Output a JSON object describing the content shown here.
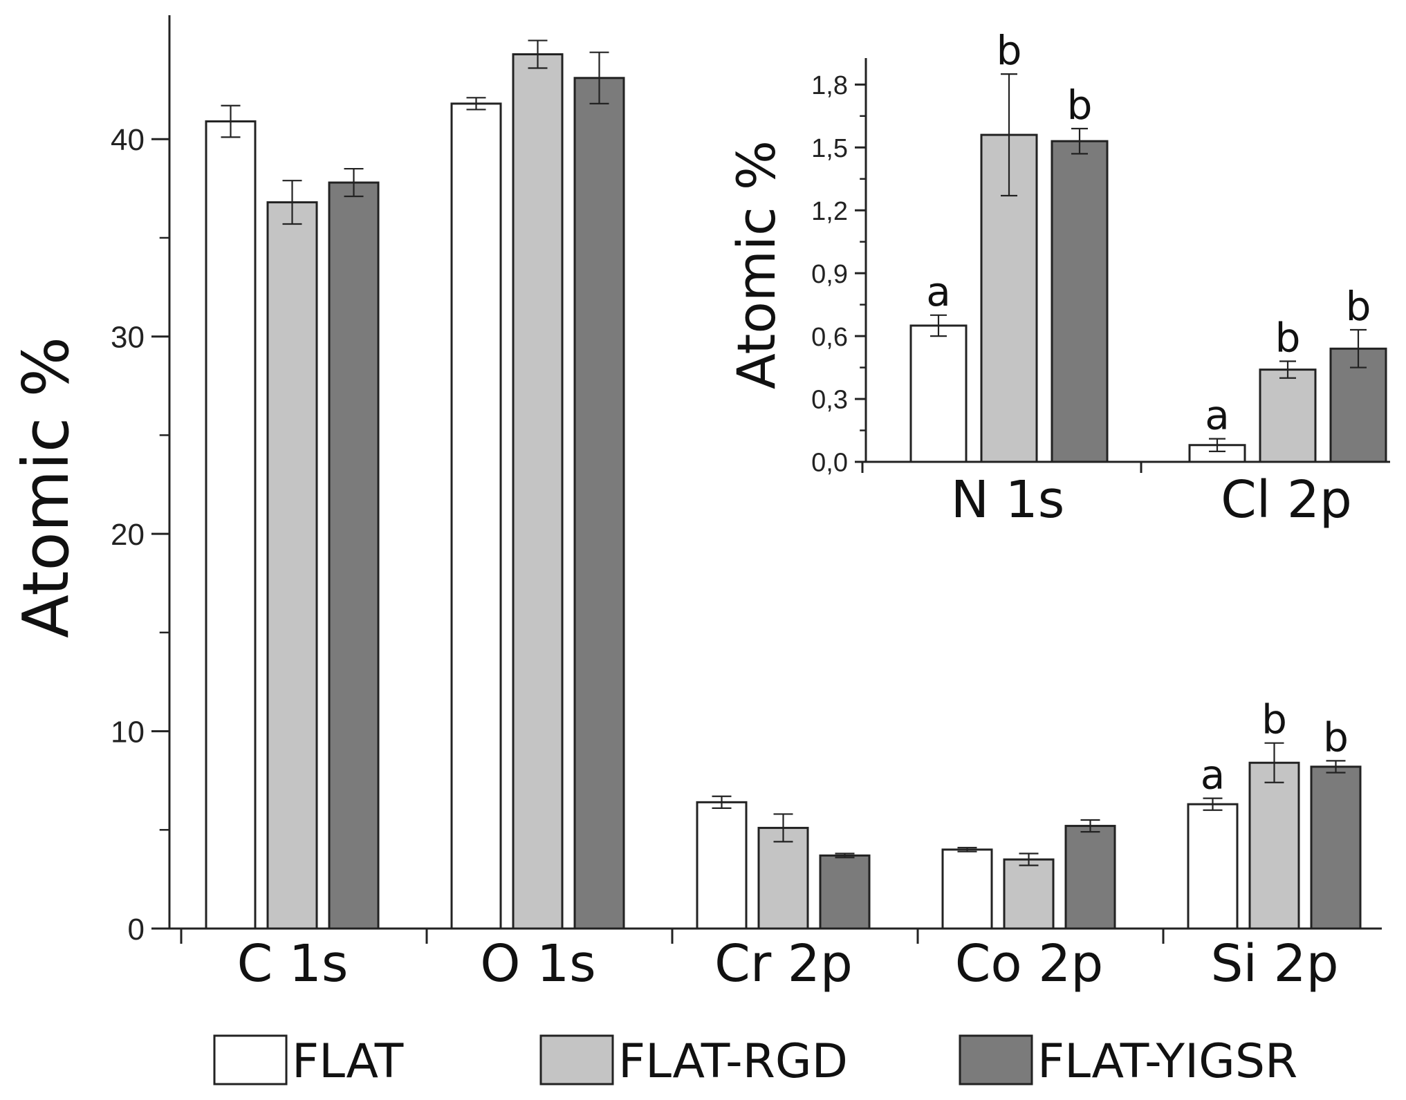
{
  "main": {
    "ylabel": "Atomic %",
    "y_tick_labels": [
      "0",
      "10",
      "20",
      "30",
      "40"
    ]
  },
  "inset": {
    "ylabel": "Atomic %",
    "y_tick_labels": [
      "0,0",
      "0,3",
      "0,6",
      "0,9",
      "1,2",
      "1,5",
      "1,8"
    ]
  },
  "legend": [
    "FLAT",
    "FLAT-RGD",
    "FLAT-YIGSR"
  ],
  "colors": {
    "FLAT": "#ffffff",
    "FLAT-RGD": "#c4c4c4",
    "FLAT-YIGSR": "#7b7b7b",
    "stroke": "#222222"
  },
  "chart_data": [
    {
      "type": "bar",
      "title": "",
      "xlabel": "",
      "ylabel": "Atomic %",
      "ylim": [
        0,
        46
      ],
      "yticks": [
        0,
        10,
        20,
        30,
        40
      ],
      "categories": [
        "C 1s",
        "O 1s",
        "Cr 2p",
        "Co 2p",
        "Si 2p"
      ],
      "series": [
        {
          "name": "FLAT",
          "values": [
            40.9,
            41.8,
            6.4,
            4.0,
            6.3
          ],
          "errors": [
            0.8,
            0.3,
            0.3,
            0.1,
            0.3
          ]
        },
        {
          "name": "FLAT-RGD",
          "values": [
            36.8,
            44.3,
            5.1,
            3.5,
            8.4
          ],
          "errors": [
            1.1,
            0.7,
            0.7,
            0.3,
            1.0
          ]
        },
        {
          "name": "FLAT-YIGSR",
          "values": [
            37.8,
            43.1,
            3.7,
            5.2,
            8.2
          ],
          "errors": [
            0.7,
            1.3,
            0.1,
            0.3,
            0.3
          ]
        }
      ],
      "annotations": [
        {
          "category": "Si 2p",
          "series": "FLAT",
          "text": "a"
        },
        {
          "category": "Si 2p",
          "series": "FLAT-RGD",
          "text": "b"
        },
        {
          "category": "Si 2p",
          "series": "FLAT-YIGSR",
          "text": "b"
        }
      ]
    },
    {
      "type": "bar",
      "title": "",
      "xlabel": "",
      "ylabel": "Atomic %",
      "ylim": [
        0,
        1.9
      ],
      "yticks": [
        0.0,
        0.3,
        0.6,
        0.9,
        1.2,
        1.5,
        1.8
      ],
      "categories": [
        "N 1s",
        "Cl 2p"
      ],
      "series": [
        {
          "name": "FLAT",
          "values": [
            0.65,
            0.08
          ],
          "errors": [
            0.05,
            0.03
          ]
        },
        {
          "name": "FLAT-RGD",
          "values": [
            1.56,
            0.44
          ],
          "errors": [
            0.29,
            0.04
          ]
        },
        {
          "name": "FLAT-YIGSR",
          "values": [
            1.53,
            0.54
          ],
          "errors": [
            0.06,
            0.09
          ]
        }
      ],
      "annotations": [
        {
          "category": "N 1s",
          "series": "FLAT",
          "text": "a"
        },
        {
          "category": "N 1s",
          "series": "FLAT-RGD",
          "text": "b"
        },
        {
          "category": "N 1s",
          "series": "FLAT-YIGSR",
          "text": "b"
        },
        {
          "category": "Cl 2p",
          "series": "FLAT",
          "text": "a"
        },
        {
          "category": "Cl 2p",
          "series": "FLAT-RGD",
          "text": "b"
        },
        {
          "category": "Cl 2p",
          "series": "FLAT-YIGSR",
          "text": "b"
        }
      ]
    }
  ]
}
